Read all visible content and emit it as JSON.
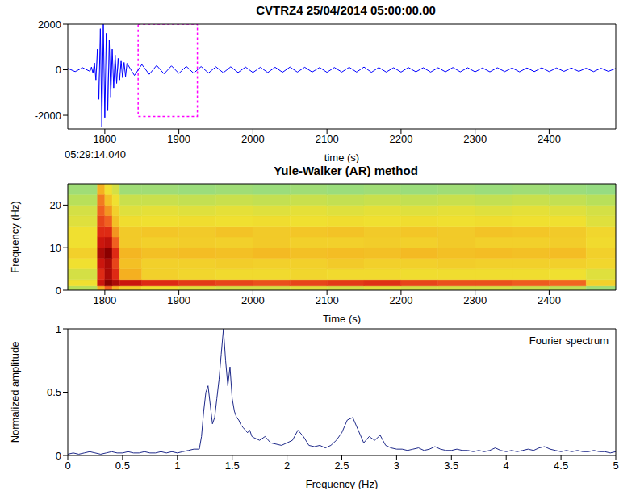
{
  "chart_data": [
    {
      "type": "line",
      "title": "CVTRZ4 25/04/2014  05:00:00.00",
      "x_label": "time (s)",
      "annotation": "05:29:14.040",
      "color": "#0000ff",
      "xlim": [
        1750,
        2490
      ],
      "ylim": [
        -2600,
        2000
      ],
      "xticks": [
        1800,
        1900,
        2000,
        2100,
        2200,
        2300,
        2400
      ],
      "yticks": [
        -2000,
        0,
        2000
      ],
      "selection": {
        "xlim": [
          1845,
          1925
        ],
        "ylim": [
          -2050,
          2000
        ],
        "color": "#ff00ff"
      },
      "x": [
        1750,
        1760,
        1770,
        1780,
        1782,
        1784,
        1786,
        1788,
        1790,
        1792,
        1794,
        1796,
        1798,
        1800,
        1802,
        1804,
        1806,
        1808,
        1810,
        1812,
        1814,
        1816,
        1818,
        1820,
        1822,
        1824,
        1826,
        1828,
        1830,
        1840,
        1850,
        1860,
        1870,
        1880,
        1890,
        1900,
        1910,
        1920,
        1930,
        1940,
        1950,
        1960,
        1970,
        1980,
        1990,
        2000,
        2010,
        2020,
        2030,
        2040,
        2050,
        2060,
        2070,
        2080,
        2090,
        2100,
        2110,
        2120,
        2130,
        2140,
        2150,
        2160,
        2170,
        2180,
        2190,
        2200,
        2210,
        2220,
        2230,
        2240,
        2250,
        2260,
        2270,
        2280,
        2290,
        2300,
        2310,
        2320,
        2330,
        2340,
        2350,
        2360,
        2370,
        2380,
        2390,
        2400,
        2410,
        2420,
        2430,
        2440,
        2450,
        2460,
        2470,
        2480,
        2490
      ],
      "values": [
        60,
        -80,
        90,
        -70,
        120,
        -150,
        300,
        -450,
        900,
        -1300,
        1800,
        -2500,
        2000,
        -2100,
        1600,
        -1800,
        1300,
        -1200,
        900,
        -800,
        650,
        -600,
        500,
        -450,
        380,
        -350,
        320,
        -300,
        280,
        -250,
        230,
        -200,
        190,
        -180,
        170,
        -160,
        150,
        -150,
        140,
        -140,
        130,
        -130,
        130,
        -120,
        120,
        -120,
        110,
        -120,
        110,
        -110,
        120,
        -100,
        110,
        -100,
        100,
        -110,
        100,
        -100,
        110,
        -100,
        120,
        -110,
        100,
        -100,
        90,
        -100,
        100,
        -90,
        90,
        -100,
        90,
        -90,
        100,
        -90,
        90,
        -90,
        80,
        -90,
        90,
        -80,
        80,
        -90,
        80,
        -80,
        90,
        -80,
        80,
        -70,
        80,
        -70,
        70,
        -80,
        70,
        -70,
        60
      ]
    },
    {
      "type": "heatmap",
      "title": "Yule-Walker (AR) method",
      "x_label": "Time (s)",
      "y_label": "Frequency (Hz)",
      "xlim": [
        1750,
        2490
      ],
      "ylim": [
        0,
        25
      ],
      "xticks": [
        1800,
        1900,
        2000,
        2100,
        2200,
        2300,
        2400
      ],
      "yticks": [
        0,
        10,
        20
      ],
      "x_bins": [
        1750,
        1790,
        1800,
        1810,
        1820,
        1850,
        1900,
        1950,
        2000,
        2050,
        2100,
        2150,
        2200,
        2250,
        2300,
        2350,
        2400,
        2450,
        2490
      ],
      "y_bins": [
        0,
        1,
        2.5,
        5,
        7.5,
        10,
        12.5,
        15,
        17.5,
        20,
        22.5,
        25
      ],
      "cells": [
        [
          0.35,
          0.6,
          0.75,
          0.6,
          0.5,
          0.45,
          0.42,
          0.4,
          0.4,
          0.42,
          0.4,
          0.42,
          0.4,
          0.4,
          0.4,
          0.38,
          0.36,
          0.3
        ],
        [
          0.45,
          0.9,
          1,
          0.95,
          0.9,
          0.85,
          0.82,
          0.8,
          0.78,
          0.8,
          0.82,
          0.84,
          0.8,
          0.78,
          0.78,
          0.76,
          0.74,
          0.5
        ],
        [
          0.4,
          0.85,
          0.95,
          0.85,
          0.6,
          0.5,
          0.48,
          0.47,
          0.47,
          0.48,
          0.47,
          0.47,
          0.46,
          0.46,
          0.46,
          0.46,
          0.45,
          0.42
        ],
        [
          0.45,
          0.9,
          0.95,
          0.8,
          0.55,
          0.5,
          0.5,
          0.51,
          0.5,
          0.5,
          0.52,
          0.5,
          0.5,
          0.51,
          0.5,
          0.5,
          0.5,
          0.48
        ],
        [
          0.5,
          0.95,
          1,
          0.85,
          0.58,
          0.55,
          0.56,
          0.55,
          0.57,
          0.55,
          0.56,
          0.55,
          0.57,
          0.55,
          0.56,
          0.55,
          0.56,
          0.5
        ],
        [
          0.45,
          0.9,
          0.92,
          0.75,
          0.52,
          0.5,
          0.51,
          0.5,
          0.52,
          0.5,
          0.5,
          0.51,
          0.5,
          0.52,
          0.5,
          0.5,
          0.51,
          0.47
        ],
        [
          0.45,
          0.85,
          0.85,
          0.65,
          0.52,
          0.53,
          0.52,
          0.54,
          0.52,
          0.53,
          0.54,
          0.52,
          0.53,
          0.52,
          0.54,
          0.53,
          0.52,
          0.48
        ],
        [
          0.42,
          0.8,
          0.75,
          0.55,
          0.46,
          0.45,
          0.46,
          0.45,
          0.46,
          0.45,
          0.46,
          0.45,
          0.46,
          0.45,
          0.46,
          0.45,
          0.45,
          0.42
        ],
        [
          0.4,
          0.75,
          0.65,
          0.5,
          0.42,
          0.43,
          0.42,
          0.43,
          0.42,
          0.43,
          0.42,
          0.43,
          0.42,
          0.43,
          0.42,
          0.43,
          0.42,
          0.4
        ],
        [
          0.35,
          0.7,
          0.55,
          0.45,
          0.38,
          0.38,
          0.37,
          0.38,
          0.37,
          0.38,
          0.37,
          0.38,
          0.37,
          0.38,
          0.37,
          0.38,
          0.37,
          0.35
        ],
        [
          0.3,
          0.6,
          0.45,
          0.4,
          0.3,
          0.3,
          0.29,
          0.3,
          0.29,
          0.3,
          0.29,
          0.3,
          0.29,
          0.3,
          0.29,
          0.3,
          0.29,
          0.28
        ]
      ]
    },
    {
      "type": "line",
      "x_label": "Frequency (Hz)",
      "y_label": "Normalized amplitude",
      "annotation": "Fourier spectrum",
      "color": "#1f2a8a",
      "xlim": [
        0,
        5
      ],
      "ylim": [
        0,
        1
      ],
      "xticks": [
        0,
        0.5,
        1,
        1.5,
        2,
        2.5,
        3,
        3.5,
        4,
        4.5,
        5
      ],
      "yticks": [
        0,
        0.5,
        1
      ],
      "x": [
        0,
        0.05,
        0.1,
        0.15,
        0.2,
        0.25,
        0.3,
        0.35,
        0.4,
        0.45,
        0.5,
        0.55,
        0.6,
        0.65,
        0.7,
        0.75,
        0.8,
        0.85,
        0.9,
        0.95,
        1,
        1.05,
        1.1,
        1.15,
        1.2,
        1.22,
        1.24,
        1.26,
        1.28,
        1.3,
        1.32,
        1.34,
        1.36,
        1.38,
        1.4,
        1.42,
        1.44,
        1.46,
        1.48,
        1.5,
        1.52,
        1.54,
        1.56,
        1.58,
        1.6,
        1.62,
        1.64,
        1.66,
        1.68,
        1.7,
        1.75,
        1.8,
        1.85,
        1.9,
        1.95,
        2,
        2.05,
        2.1,
        2.15,
        2.2,
        2.25,
        2.3,
        2.35,
        2.4,
        2.45,
        2.5,
        2.55,
        2.6,
        2.65,
        2.7,
        2.75,
        2.8,
        2.85,
        2.9,
        2.95,
        3,
        3.05,
        3.1,
        3.15,
        3.2,
        3.25,
        3.3,
        3.35,
        3.4,
        3.45,
        3.5,
        3.55,
        3.6,
        3.65,
        3.7,
        3.75,
        3.8,
        3.85,
        3.9,
        3.95,
        4,
        4.05,
        4.1,
        4.15,
        4.2,
        4.25,
        4.3,
        4.35,
        4.4,
        4.45,
        4.5,
        4.55,
        4.6,
        4.65,
        4.7,
        4.75,
        4.8,
        4.85,
        4.9,
        4.95,
        5
      ],
      "values": [
        0.01,
        0.02,
        0.01,
        0.02,
        0.03,
        0.02,
        0.01,
        0.02,
        0.03,
        0.02,
        0.02,
        0.03,
        0.02,
        0.02,
        0.03,
        0.02,
        0.02,
        0.03,
        0.02,
        0.03,
        0.02,
        0.03,
        0.04,
        0.05,
        0.05,
        0.15,
        0.35,
        0.5,
        0.55,
        0.4,
        0.25,
        0.3,
        0.45,
        0.6,
        0.8,
        1,
        0.75,
        0.55,
        0.7,
        0.45,
        0.35,
        0.3,
        0.28,
        0.24,
        0.22,
        0.2,
        0.18,
        0.2,
        0.15,
        0.14,
        0.12,
        0.15,
        0.1,
        0.09,
        0.08,
        0.1,
        0.12,
        0.2,
        0.15,
        0.08,
        0.07,
        0.08,
        0.06,
        0.08,
        0.12,
        0.18,
        0.28,
        0.3,
        0.2,
        0.1,
        0.15,
        0.12,
        0.16,
        0.08,
        0.06,
        0.05,
        0.05,
        0.04,
        0.05,
        0.06,
        0.04,
        0.05,
        0.07,
        0.05,
        0.04,
        0.04,
        0.05,
        0.04,
        0.04,
        0.03,
        0.04,
        0.03,
        0.04,
        0.06,
        0.04,
        0.03,
        0.04,
        0.03,
        0.04,
        0.05,
        0.04,
        0.06,
        0.07,
        0.05,
        0.04,
        0.03,
        0.04,
        0.03,
        0.04,
        0.03,
        0.03,
        0.04,
        0.03,
        0.03,
        0.02,
        0.03
      ]
    }
  ]
}
